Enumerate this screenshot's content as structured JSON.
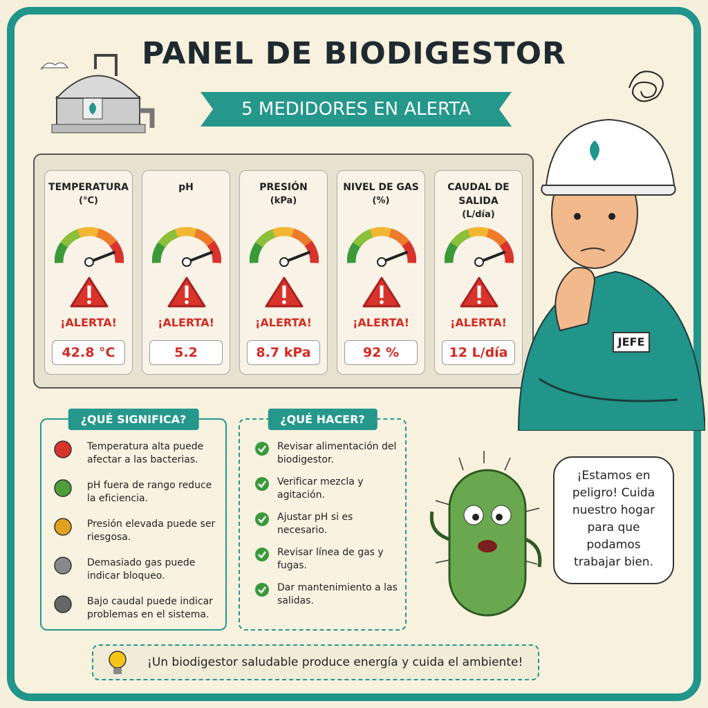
{
  "header": {
    "title": "PANEL DE BIODIGESTOR",
    "subtitle": "5 MEDIDORES EN ALERTA"
  },
  "gauges": [
    {
      "label": "TEMPERATURA",
      "unit": "(°C)",
      "status": "¡ALERTA!",
      "reading": "42.8 °C"
    },
    {
      "label": "pH",
      "status": "¡ALERTA!",
      "reading": "5.2"
    },
    {
      "label": "PRESIÓN",
      "unit": "(kPa)",
      "status": "¡ALERTA!",
      "reading": "8.7 kPa"
    },
    {
      "label": "NIVEL DE GAS",
      "unit": "(%)",
      "status": "¡ALERTA!",
      "reading": "92 %"
    },
    {
      "label": "CAUDAL DE SALIDA",
      "unit": "(L/día)",
      "status": "¡ALERTA!",
      "reading": "12 L/día"
    }
  ],
  "meaning": {
    "title": "¿QUÉ SIGNIFICA?",
    "items": [
      "Temperatura alta puede afectar a las bacterias.",
      "pH fuera de rango reduce la eficiencia.",
      "Presión elevada puede ser riesgosa.",
      "Demasiado gas puede indicar bloqueo.",
      "Bajo caudal puede indicar problemas en el sistema."
    ]
  },
  "actions": {
    "title": "¿QUÉ HACER?",
    "items": [
      "Revisar alimentación del biodigestor.",
      "Verificar mezcla y agitación.",
      "Ajustar pH si es necesario.",
      "Revisar línea de gas y fugas.",
      "Dar mantenimiento a las salidas."
    ]
  },
  "boss_badge": "JEFE",
  "speech": "¡Estamos en peligro! Cuida nuestro hogar para que podamos trabajar bien.",
  "footer": "¡Un biodigestor saludable produce energía y cuida el ambiente!"
}
